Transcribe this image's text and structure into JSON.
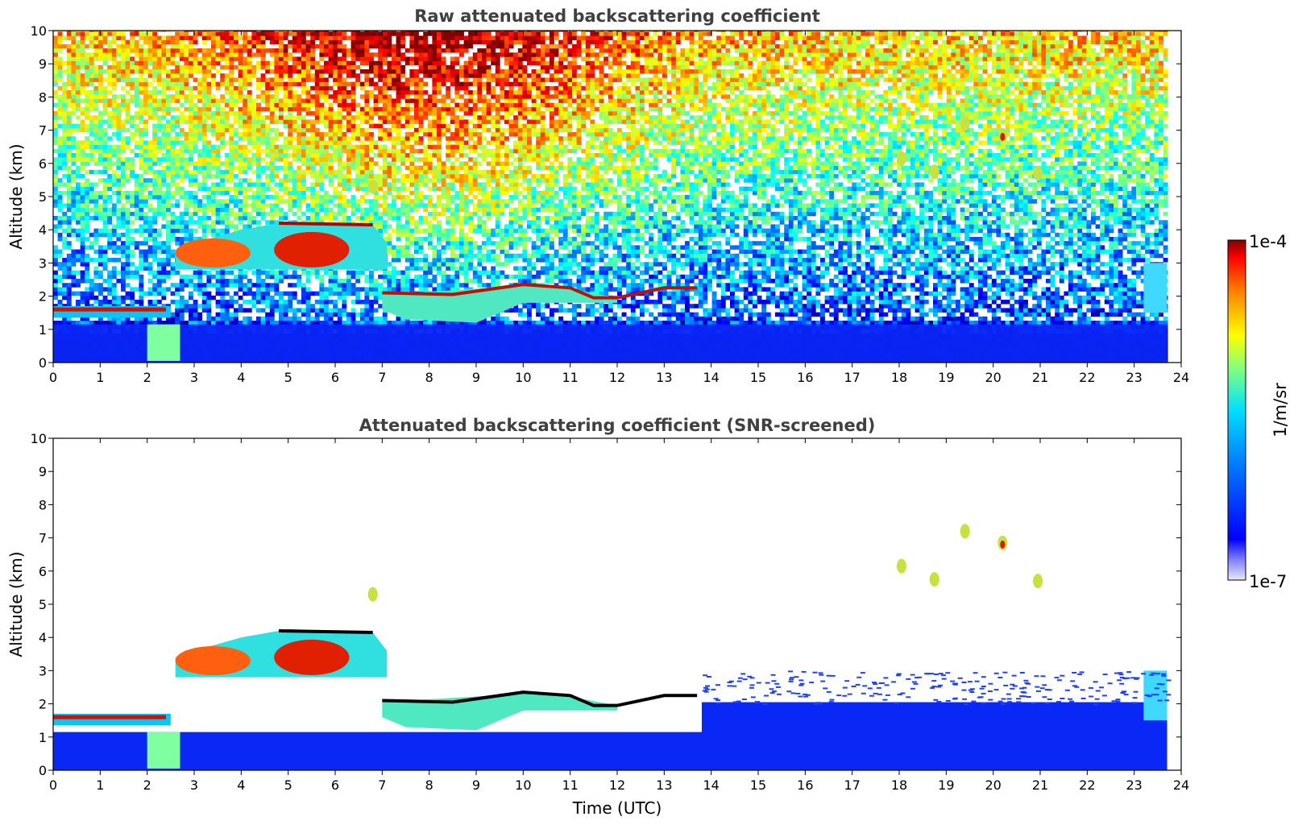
{
  "chart_data": [
    {
      "type": "heatmap",
      "title": "Raw attenuated backscattering coefficient",
      "xlabel": "",
      "ylabel": "Altitude (km)",
      "xlim": [
        0,
        24
      ],
      "ylim": [
        0,
        10
      ],
      "xticks": [
        "0",
        "1",
        "2",
        "3",
        "4",
        "5",
        "6",
        "7",
        "8",
        "9",
        "10",
        "11",
        "12",
        "13",
        "14",
        "15",
        "16",
        "17",
        "18",
        "19",
        "20",
        "21",
        "22",
        "23",
        "24"
      ],
      "yticks": [
        "0",
        "1",
        "2",
        "3",
        "4",
        "5",
        "6",
        "7",
        "8",
        "9",
        "10"
      ],
      "data_end_time": 23.7,
      "features": [
        {
          "kind": "boundary_layer",
          "t0": 0,
          "t1": 23.7,
          "z0": 0,
          "z1": 1.1,
          "level": "low"
        },
        {
          "kind": "cloud",
          "t0": 2.0,
          "t1": 2.7,
          "z0": 0.05,
          "z1": 1.15,
          "level": "mid"
        },
        {
          "kind": "cloud",
          "t0": 2.6,
          "t1": 7.1,
          "z0": 2.8,
          "z1": 4.2,
          "level": "high"
        },
        {
          "kind": "cloud",
          "t0": 7.0,
          "t1": 12.0,
          "z0": 1.6,
          "z1": 2.4,
          "level": "high"
        },
        {
          "kind": "cloud",
          "t0": 0,
          "t1": 2.5,
          "z0": 1.3,
          "z1": 1.7,
          "level": "high"
        },
        {
          "kind": "cloud",
          "t0": 23.2,
          "t1": 23.7,
          "z0": 1.5,
          "z1": 3.0,
          "level": "mid"
        },
        {
          "kind": "cirrus",
          "t0": 17.9,
          "t1": 21.0,
          "z0": 5.5,
          "z1": 7.4,
          "level": "mid"
        }
      ]
    },
    {
      "type": "heatmap",
      "title": "Attenuated backscattering coefficient (SNR-screened)",
      "xlabel": "Time (UTC)",
      "ylabel": "Altitude (km)",
      "xlim": [
        0,
        24
      ],
      "ylim": [
        0,
        10
      ],
      "xticks": [
        "0",
        "1",
        "2",
        "3",
        "4",
        "5",
        "6",
        "7",
        "8",
        "9",
        "10",
        "11",
        "12",
        "13",
        "14",
        "15",
        "16",
        "17",
        "18",
        "19",
        "20",
        "21",
        "22",
        "23",
        "24"
      ],
      "yticks": [
        "0",
        "1",
        "2",
        "3",
        "4",
        "5",
        "6",
        "7",
        "8",
        "9",
        "10"
      ],
      "data_end_time": 23.7
    }
  ],
  "colorbar": {
    "label": "1/m/sr",
    "max_label": "1e-4",
    "min_label": "1e-7",
    "scale": "log",
    "range": [
      1e-07,
      0.0001
    ],
    "colormap": "jet",
    "colors": [
      "#e6e6fa",
      "#0000ff",
      "#00ffff",
      "#ffff00",
      "#ff0000",
      "#800000"
    ]
  }
}
